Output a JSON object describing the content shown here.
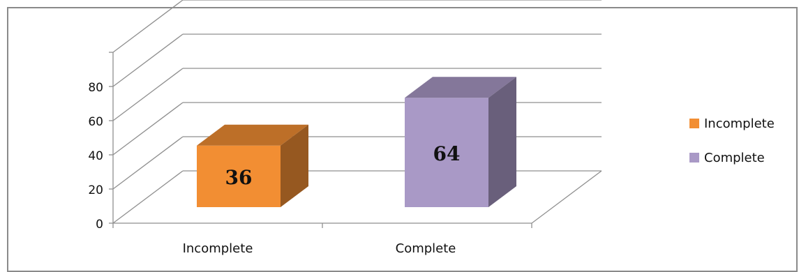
{
  "chart_data": {
    "type": "bar",
    "categories": [
      "Incomplete",
      "Complete"
    ],
    "values": [
      36,
      64
    ],
    "data_labels": [
      "36",
      "64"
    ],
    "colors": [
      "#f28e33",
      "#a999c6"
    ],
    "y_ticks": [
      "0",
      "20",
      "40",
      "60",
      "80"
    ],
    "ylim": [
      0,
      100
    ],
    "legend": [
      "Incomplete",
      "Complete"
    ],
    "legend_position": "right",
    "grid": true,
    "style": "3d"
  }
}
